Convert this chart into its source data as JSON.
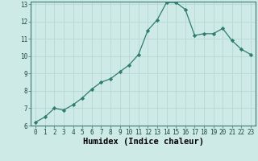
{
  "x": [
    0,
    1,
    2,
    3,
    4,
    5,
    6,
    7,
    8,
    9,
    10,
    11,
    12,
    13,
    14,
    15,
    16,
    17,
    18,
    19,
    20,
    21,
    22,
    23
  ],
  "y": [
    6.2,
    6.5,
    7.0,
    6.9,
    7.2,
    7.6,
    8.1,
    8.5,
    8.7,
    9.1,
    9.5,
    10.1,
    11.5,
    12.1,
    13.1,
    13.1,
    12.7,
    11.2,
    11.3,
    11.3,
    11.6,
    10.9,
    10.4,
    10.1
  ],
  "line_color": "#2e7d6e",
  "marker": "D",
  "marker_size": 2.2,
  "bg_color": "#ceeae6",
  "grid_color": "#b8d8d4",
  "xlabel": "Humidex (Indice chaleur)",
  "ylim": [
    6,
    13
  ],
  "xlim": [
    -0.5,
    23.5
  ],
  "yticks": [
    6,
    7,
    8,
    9,
    10,
    11,
    12,
    13
  ],
  "xticks": [
    0,
    1,
    2,
    3,
    4,
    5,
    6,
    7,
    8,
    9,
    10,
    11,
    12,
    13,
    14,
    15,
    16,
    17,
    18,
    19,
    20,
    21,
    22,
    23
  ],
  "tick_fontsize": 5.5,
  "xlabel_fontsize": 7.5
}
